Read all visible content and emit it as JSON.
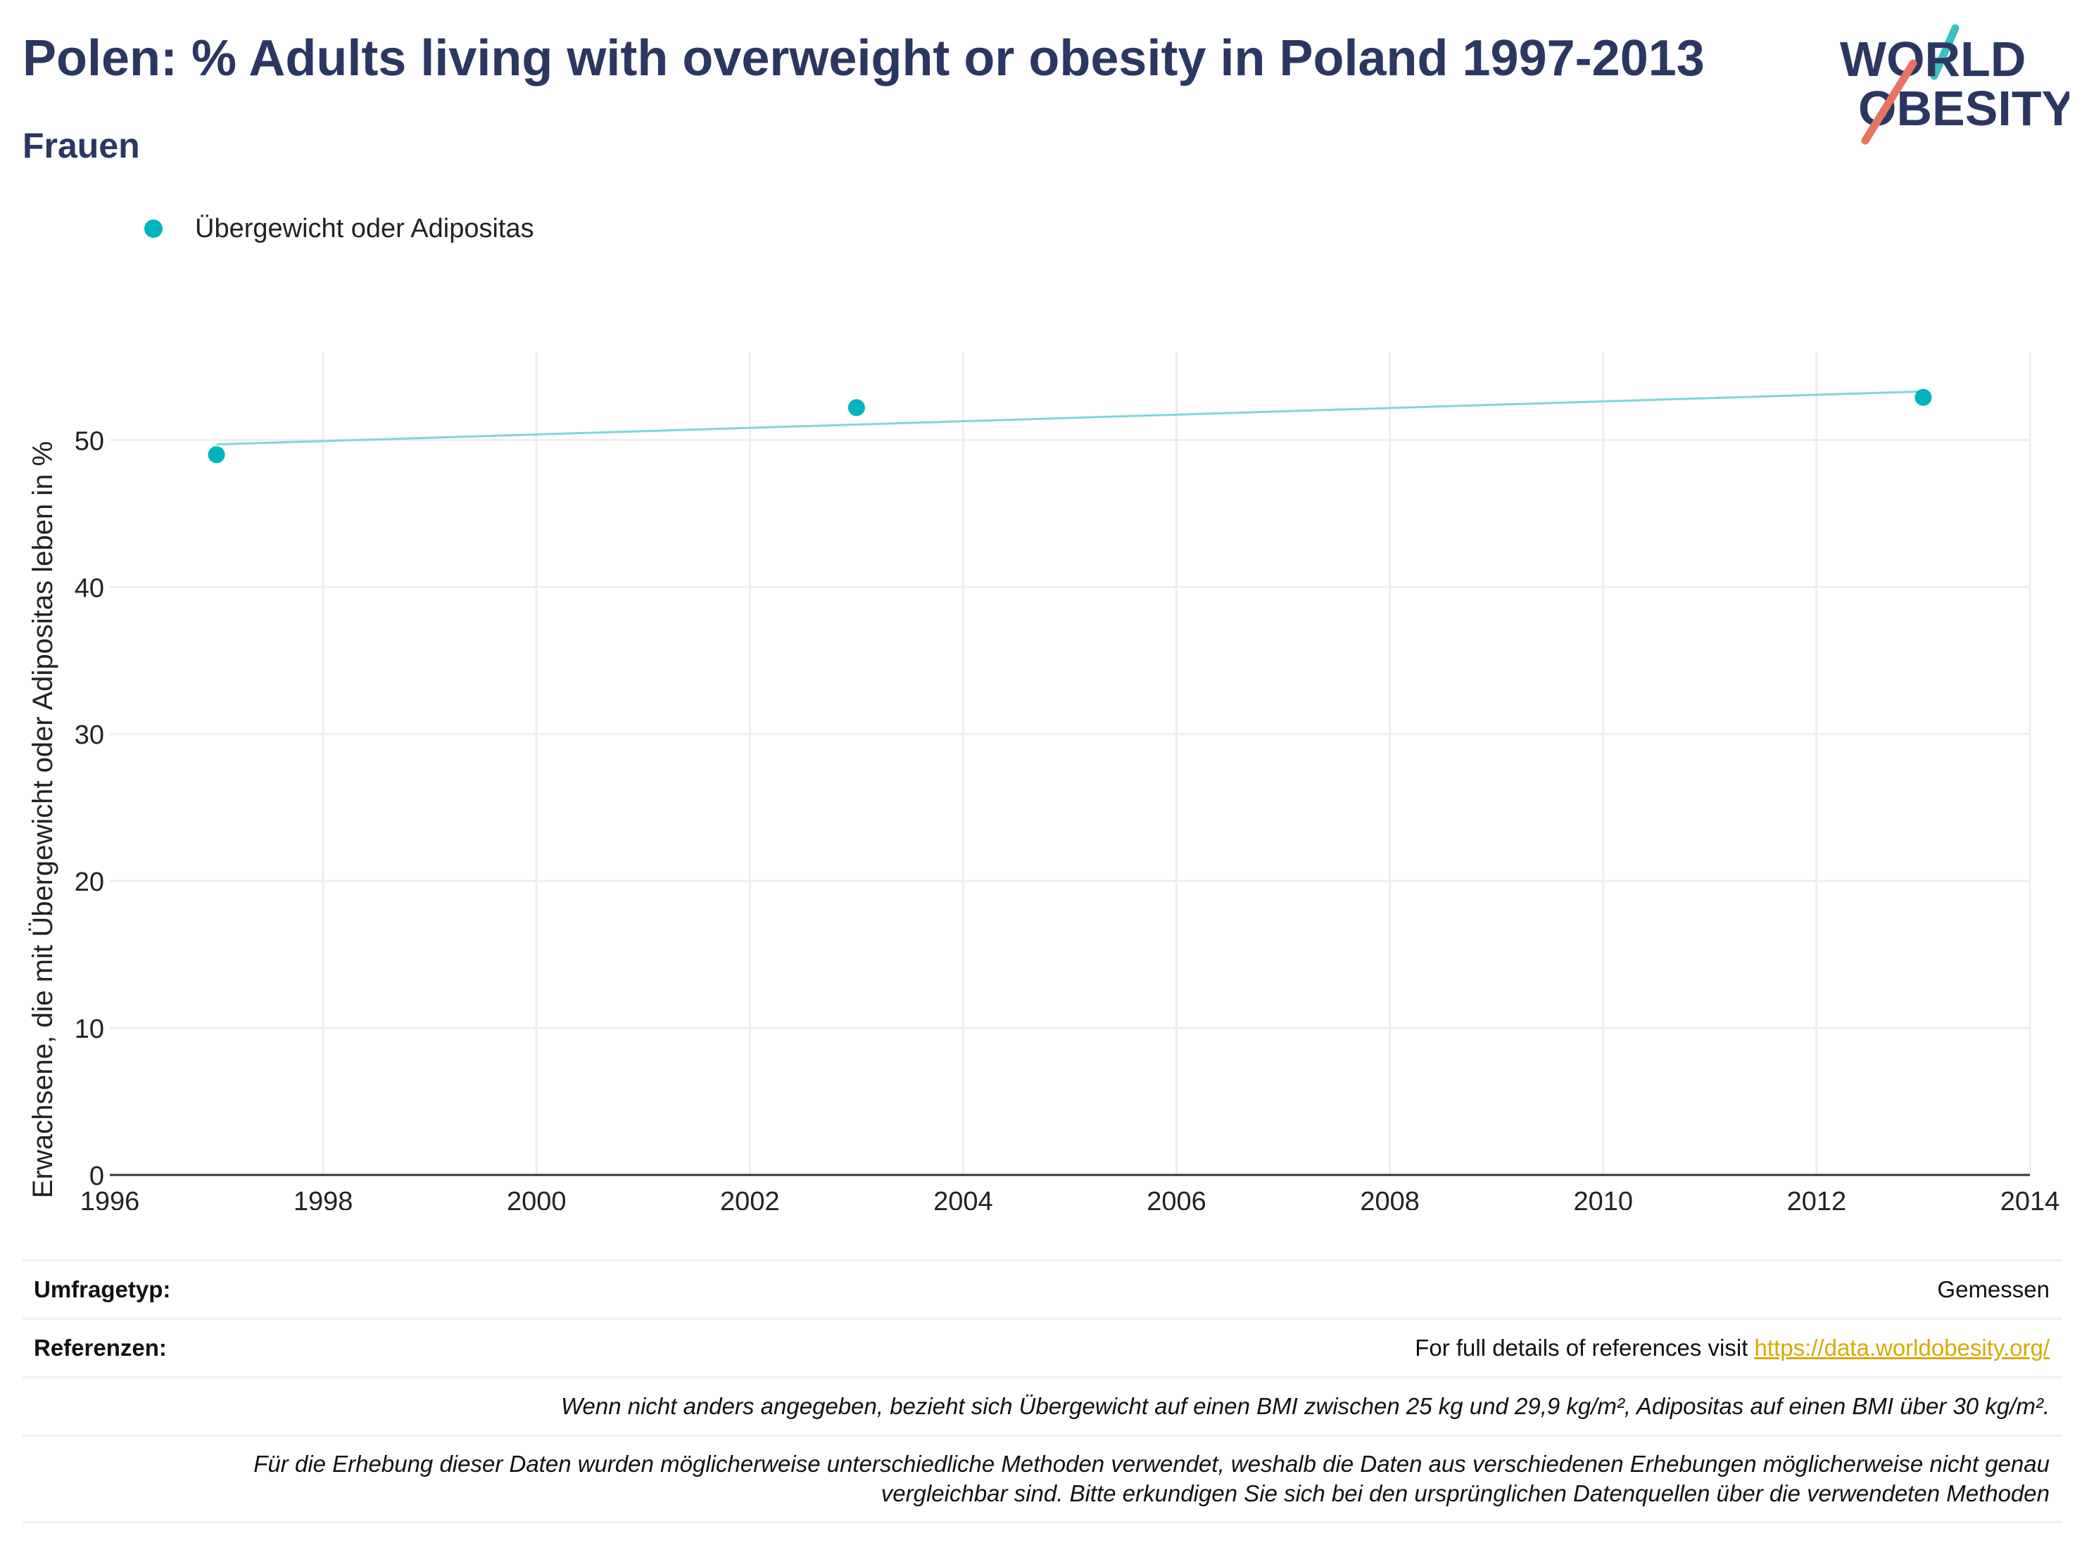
{
  "header": {
    "title": "Polen: % Adults living with overweight or obesity in Poland 1997-2013",
    "subtitle": "Frauen"
  },
  "logo": {
    "line1": "WORLD",
    "line2": "OBESITY",
    "teal": "#3bbfbf",
    "coral": "#e8735f",
    "navy": "#2b3762"
  },
  "legend": {
    "label": "Übergewicht oder Adipositas"
  },
  "colors": {
    "accent": "#00b3bd",
    "trend": "#7fd6d9",
    "text": "#2b3762"
  },
  "chart_data": {
    "type": "scatter",
    "ylabel": "Erwachsene, die mit Übergewicht oder Adipositas leben in %",
    "xlabel": "",
    "xlim": [
      1996,
      2014
    ],
    "ylim": [
      0,
      56
    ],
    "x_ticks": [
      1996,
      1998,
      2000,
      2002,
      2004,
      2006,
      2008,
      2010,
      2012,
      2014
    ],
    "y_ticks": [
      0,
      10,
      20,
      30,
      40,
      50
    ],
    "grid": true,
    "legend_position": "top-left",
    "series": [
      {
        "name": "Übergewicht oder Adipositas",
        "x": [
          1997,
          2003,
          2013
        ],
        "y": [
          49,
          52.2,
          52.9
        ]
      }
    ],
    "trendline": {
      "x": [
        1997,
        2013
      ],
      "y": [
        49.7,
        53.3
      ]
    }
  },
  "footer": {
    "survey_label": "Umfragetyp:",
    "survey_value": "Gemessen",
    "ref_label": "Referenzen:",
    "ref_text": "For full details of references visit ",
    "ref_link": "https://data.worldobesity.org/",
    "note1": "Wenn nicht anders angegeben, bezieht sich Übergewicht auf einen BMI zwischen 25 kg und 29,9 kg/m², Adipositas auf einen BMI über 30 kg/m².",
    "note2a": "Für die Erhebung dieser Daten wurden möglicherweise unterschiedliche Methoden verwendet, weshalb die Daten aus verschiedenen Erhebungen möglicherweise nicht genau",
    "note2b": "vergleichbar sind. Bitte erkundigen Sie sich bei den ursprünglichen Datenquellen über die verwendeten Methoden"
  }
}
